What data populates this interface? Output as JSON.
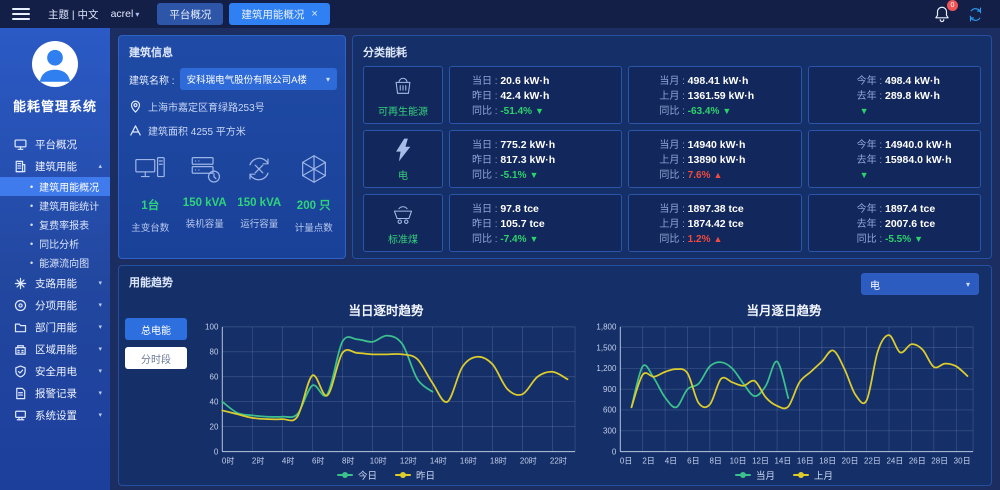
{
  "topbar": {
    "theme_label": "主题 | 中文",
    "user": "acrel",
    "badge": "0",
    "tabs": [
      {
        "label": "平台概况",
        "active": false,
        "closable": false
      },
      {
        "label": "建筑用能概况",
        "active": true,
        "closable": true
      }
    ]
  },
  "sidebar": {
    "app_title": "能耗管理系统",
    "items": [
      {
        "label": "平台概况",
        "icon": "platform-icon",
        "children": []
      },
      {
        "label": "建筑用能",
        "icon": "building-icon",
        "expanded": true,
        "children": [
          {
            "label": "建筑用能概况",
            "active": true
          },
          {
            "label": "建筑用能统计",
            "active": false
          },
          {
            "label": "复费率报表",
            "active": false
          },
          {
            "label": "同比分析",
            "active": false
          },
          {
            "label": "能源流向图",
            "active": false
          }
        ]
      },
      {
        "label": "支路用能",
        "icon": "branch-icon",
        "collapsible": true
      },
      {
        "label": "分项用能",
        "icon": "subitem-icon",
        "collapsible": true
      },
      {
        "label": "部门用能",
        "icon": "department-icon",
        "collapsible": true
      },
      {
        "label": "区域用能",
        "icon": "region-icon",
        "collapsible": true
      },
      {
        "label": "安全用电",
        "icon": "safety-icon",
        "collapsible": true
      },
      {
        "label": "报警记录",
        "icon": "alarm-icon",
        "collapsible": true
      },
      {
        "label": "系统设置",
        "icon": "settings-icon",
        "collapsible": true
      }
    ]
  },
  "building_info": {
    "title": "建筑信息",
    "name_label": "建筑名称 :",
    "name_value": "安科瑞电气股份有限公司A楼",
    "address": "上海市嘉定区育绿路253号",
    "area": "建筑面积 4255 平方米",
    "stats": [
      {
        "icon": "workstation-icon",
        "value": "1台",
        "label": "主变台数"
      },
      {
        "icon": "capacity-icon",
        "value": "150 kVA",
        "label": "装机容量"
      },
      {
        "icon": "running-icon",
        "value": "150 kVA",
        "label": "运行容量"
      },
      {
        "icon": "points-icon",
        "value": "200 只",
        "label": "计量点数"
      }
    ]
  },
  "category": {
    "title": "分类能耗",
    "rows": [
      {
        "name": "可再生能源",
        "icon": "renewable-icon",
        "cells": [
          {
            "top_label": "当日 :",
            "top_value": "20.6 kW·h",
            "mid_label": "昨日 :",
            "mid_value": "42.4 kW·h",
            "ratio_label": "同比 :",
            "ratio_value": "-51.4%",
            "dir": "down"
          },
          {
            "top_label": "当月 :",
            "top_value": "498.41 kW·h",
            "mid_label": "上月 :",
            "mid_value": "1361.59 kW·h",
            "ratio_label": "同比 :",
            "ratio_value": "-63.4%",
            "dir": "down"
          },
          {
            "top_label": "今年 :",
            "top_value": "498.4 kW·h",
            "mid_label": "去年 :",
            "mid_value": "289.8 kW·h",
            "ratio_label": "",
            "ratio_value": "",
            "dir": "down"
          }
        ]
      },
      {
        "name": "电",
        "icon": "electric-icon",
        "cells": [
          {
            "top_label": "当日 :",
            "top_value": "775.2 kW·h",
            "mid_label": "昨日 :",
            "mid_value": "817.3 kW·h",
            "ratio_label": "同比 :",
            "ratio_value": "-5.1%",
            "dir": "down"
          },
          {
            "top_label": "当月 :",
            "top_value": "14940 kW·h",
            "mid_label": "上月 :",
            "mid_value": "13890 kW·h",
            "ratio_label": "同比 :",
            "ratio_value": "7.6%",
            "dir": "up"
          },
          {
            "top_label": "今年 :",
            "top_value": "14940.0 kW·h",
            "mid_label": "去年 :",
            "mid_value": "15984.0 kW·h",
            "ratio_label": "",
            "ratio_value": "",
            "dir": "down"
          }
        ]
      },
      {
        "name": "标准煤",
        "icon": "coal-icon",
        "cells": [
          {
            "top_label": "当日 :",
            "top_value": "97.8 tce",
            "mid_label": "昨日 :",
            "mid_value": "105.7 tce",
            "ratio_label": "同比 :",
            "ratio_value": "-7.4%",
            "dir": "down"
          },
          {
            "top_label": "当月 :",
            "top_value": "1897.38 tce",
            "mid_label": "上月 :",
            "mid_value": "1874.42 tce",
            "ratio_label": "同比 :",
            "ratio_value": "1.2%",
            "dir": "up"
          },
          {
            "top_label": "今年 :",
            "top_value": "1897.4 tce",
            "mid_label": "去年 :",
            "mid_value": "2007.6 tce",
            "ratio_label": "同比 :",
            "ratio_value": "-5.5%",
            "dir": "down"
          }
        ]
      }
    ]
  },
  "trend": {
    "title": "用能趋势",
    "select_value": "电",
    "buttons": [
      {
        "label": "总电能",
        "active": true
      },
      {
        "label": "分时段",
        "active": false
      }
    ]
  },
  "colors": {
    "accent_blue": "#2f80f2",
    "green": "#2bd36b",
    "red": "#f04b3e",
    "line_green": "#3cc08d",
    "line_yellow": "#dccd2d"
  },
  "chart_data": [
    {
      "type": "line",
      "title": "当日逐时趋势",
      "x_domain": [
        0,
        23.5
      ],
      "x_tick_positions": [
        0,
        2,
        4,
        6,
        8,
        10,
        12,
        14,
        16,
        18,
        20,
        22
      ],
      "x_ticks": [
        "0时",
        "2时",
        "4时",
        "6时",
        "8时",
        "10时",
        "12时",
        "14时",
        "16时",
        "18时",
        "20时",
        "22时"
      ],
      "ylim": [
        0,
        100
      ],
      "y_ticks": [
        0,
        20,
        40,
        60,
        80,
        100
      ],
      "y_tick_labels": [
        "0",
        "20",
        "40",
        "60",
        "80",
        "100"
      ],
      "grid": true,
      "legend_position": "bottom",
      "series": [
        {
          "name": "今日",
          "color": "#3cc08d",
          "start_x": 0,
          "values": [
            40,
            31,
            29,
            28,
            28,
            30,
            53,
            46,
            88,
            90,
            88,
            93,
            86,
            58,
            48
          ]
        },
        {
          "name": "昨日",
          "color": "#dccd2d",
          "start_x": 0,
          "values": [
            33,
            30,
            27,
            26,
            26,
            28,
            61,
            45,
            79,
            79,
            78,
            78,
            78,
            74,
            55,
            40,
            68,
            76,
            70,
            50,
            46,
            60,
            64,
            58
          ]
        }
      ]
    },
    {
      "type": "line",
      "title": "当月逐日趋势",
      "x_domain": [
        0,
        31.5
      ],
      "x_tick_positions": [
        0,
        2,
        4,
        6,
        8,
        10,
        12,
        14,
        16,
        18,
        20,
        22,
        24,
        26,
        28,
        30
      ],
      "x_ticks": [
        "0日",
        "2日",
        "4日",
        "6日",
        "8日",
        "10日",
        "12日",
        "14日",
        "16日",
        "18日",
        "20日",
        "22日",
        "24日",
        "26日",
        "28日",
        "30日"
      ],
      "ylim": [
        0,
        1800
      ],
      "y_ticks": [
        0,
        300,
        600,
        900,
        1200,
        1500,
        1800
      ],
      "y_tick_labels": [
        "0",
        "300",
        "600",
        "900",
        "1,200",
        "1,500",
        "1,800"
      ],
      "grid": true,
      "legend_position": "bottom",
      "series": [
        {
          "name": "当月",
          "color": "#3cc08d",
          "start_x": 1,
          "values": [
            640,
            1230,
            1060,
            780,
            640,
            900,
            980,
            1230,
            1290,
            1200,
            980,
            800,
            950,
            1300,
            770
          ]
        },
        {
          "name": "上月",
          "color": "#dccd2d",
          "start_x": 1,
          "values": [
            640,
            1110,
            1080,
            1150,
            1190,
            1130,
            700,
            680,
            1050,
            1000,
            950,
            1020,
            780,
            660,
            650,
            1000,
            1150,
            1300,
            1460,
            1200,
            820,
            740,
            1450,
            1680,
            1430,
            1550,
            1470,
            1220,
            1270,
            1230,
            1090
          ]
        }
      ]
    }
  ]
}
